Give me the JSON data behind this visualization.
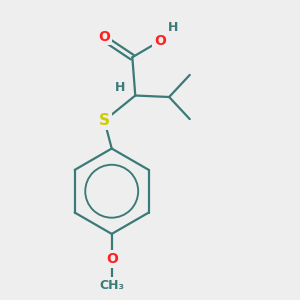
{
  "background_color": "#eeeeee",
  "atom_colors": {
    "C": "#3a7a78",
    "O": "#ff2020",
    "S": "#cccc00",
    "H": "#3a7a78"
  },
  "figsize": [
    3.0,
    3.0
  ],
  "dpi": 100,
  "bond_lw": 1.6,
  "font_size": 10
}
